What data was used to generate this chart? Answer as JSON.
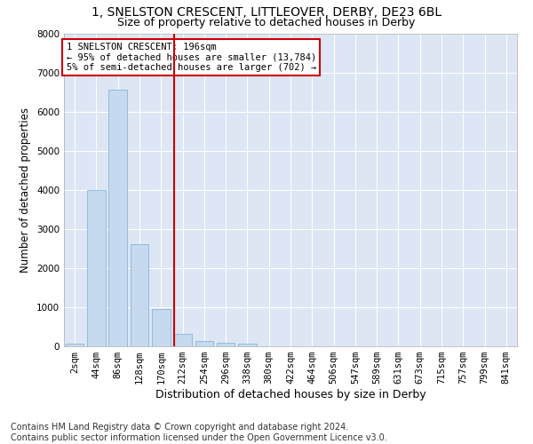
{
  "title": "1, SNELSTON CRESCENT, LITTLEOVER, DERBY, DE23 6BL",
  "subtitle": "Size of property relative to detached houses in Derby",
  "xlabel": "Distribution of detached houses by size in Derby",
  "ylabel": "Number of detached properties",
  "categories": [
    "2sqm",
    "44sqm",
    "86sqm",
    "128sqm",
    "170sqm",
    "212sqm",
    "254sqm",
    "296sqm",
    "338sqm",
    "380sqm",
    "422sqm",
    "464sqm",
    "506sqm",
    "547sqm",
    "589sqm",
    "631sqm",
    "673sqm",
    "715sqm",
    "757sqm",
    "799sqm",
    "841sqm"
  ],
  "values": [
    70,
    4000,
    6550,
    2600,
    960,
    310,
    140,
    100,
    60,
    0,
    0,
    0,
    0,
    0,
    0,
    0,
    0,
    0,
    0,
    0,
    0
  ],
  "bar_color": "#c5d9ef",
  "bar_edge_color": "#7aafd4",
  "vline_color": "#cc0000",
  "annotation_box_text": "1 SNELSTON CRESCENT: 196sqm\n← 95% of detached houses are smaller (13,784)\n5% of semi-detached houses are larger (702) →",
  "annotation_box_color": "#cc0000",
  "ylim": [
    0,
    8000
  ],
  "yticks": [
    0,
    1000,
    2000,
    3000,
    4000,
    5000,
    6000,
    7000,
    8000
  ],
  "background_color": "#ffffff",
  "plot_bg_color": "#dce6f5",
  "grid_color": "#ffffff",
  "footer": "Contains HM Land Registry data © Crown copyright and database right 2024.\nContains public sector information licensed under the Open Government Licence v3.0.",
  "title_fontsize": 10,
  "subtitle_fontsize": 9,
  "xlabel_fontsize": 9,
  "ylabel_fontsize": 8.5,
  "tick_fontsize": 7.5,
  "footer_fontsize": 7,
  "vline_index": 4.62
}
